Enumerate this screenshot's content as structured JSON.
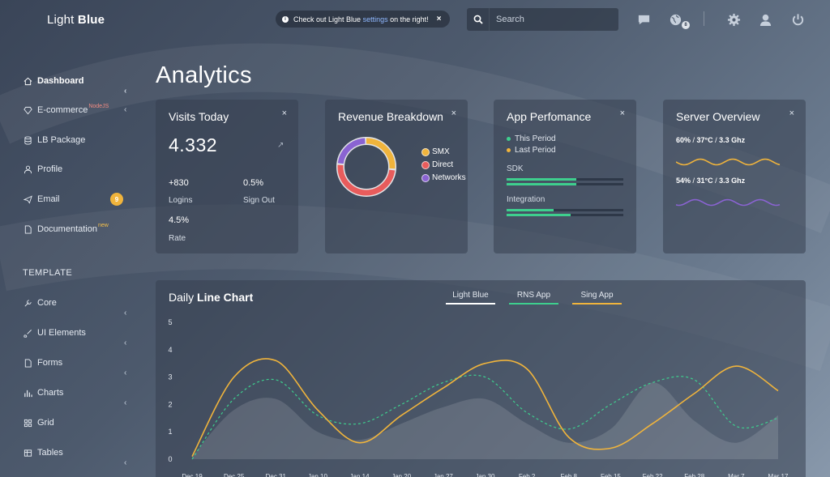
{
  "brand": {
    "light": "Light",
    "bold": "Blue"
  },
  "notice": {
    "prefix": "Check out Light Blue",
    "link": "settings",
    "suffix": "on the right!",
    "close": "×"
  },
  "search": {
    "placeholder": "Search"
  },
  "header": {
    "notifications_count": "8"
  },
  "sidebar": {
    "items": [
      {
        "label": "Dashboard",
        "icon": "home-icon",
        "active": true
      },
      {
        "label": "E-commerce",
        "icon": "diamond-icon",
        "sup": "NodeJS"
      },
      {
        "label": "LB Package",
        "icon": "database-icon"
      },
      {
        "label": "Profile",
        "icon": "user-icon"
      },
      {
        "label": "Email",
        "icon": "paper-plane-icon",
        "badge": "9"
      },
      {
        "label": "Documentation",
        "icon": "document-icon",
        "sup": "new"
      }
    ],
    "section_title": "TEMPLATE",
    "template_items": [
      {
        "label": "Core",
        "icon": "wrench-icon"
      },
      {
        "label": "UI Elements",
        "icon": "brush-icon"
      },
      {
        "label": "Forms",
        "icon": "document-icon"
      },
      {
        "label": "Charts",
        "icon": "chart-icon"
      },
      {
        "label": "Grid",
        "icon": "grid-icon"
      },
      {
        "label": "Tables",
        "icon": "table-icon"
      }
    ]
  },
  "page": {
    "title": "Analytics"
  },
  "visits": {
    "title": "Visits Today",
    "close": "×",
    "value": "4.332",
    "stats": [
      {
        "value": "+830",
        "label": "Logins"
      },
      {
        "value": "0.5%",
        "label": "Sign Out"
      },
      {
        "value": "4.5%",
        "label": "Rate"
      }
    ]
  },
  "revenue": {
    "title": "Revenue Breakdown",
    "close": "×",
    "legend": [
      {
        "label": "SMX",
        "color": "#f0b43c",
        "share": 0.27
      },
      {
        "label": "Direct",
        "color": "#e85c5c",
        "share": 0.5
      },
      {
        "label": "Networks",
        "color": "#8a63d2",
        "share": 0.23
      }
    ]
  },
  "performance": {
    "title": "App Perfomance",
    "close": "×",
    "legend": [
      {
        "label": "This Period",
        "color": "#3ecf8e"
      },
      {
        "label": "Last Period",
        "color": "#f0b43c"
      }
    ],
    "metrics": [
      {
        "label": "SDK",
        "this": 0.6,
        "last": 0.6
      },
      {
        "label": "Integration",
        "this": 0.4,
        "last": 0.55
      }
    ]
  },
  "server": {
    "title": "Server Overview",
    "close": "×",
    "rows": [
      {
        "pct": "60%",
        "temp": "37°C",
        "freq": "3.3 Ghz",
        "color": "#f0b43c"
      },
      {
        "pct": "54%",
        "temp": "31°C",
        "freq": "3.3 Ghz",
        "color": "#8a63d2"
      }
    ]
  },
  "line_chart": {
    "title_light": "Daily",
    "title_bold": "Line Chart",
    "tabs": [
      {
        "label": "Light Blue",
        "color": "#ffffff"
      },
      {
        "label": "RNS App",
        "color": "#3ecf8e"
      },
      {
        "label": "Sing App",
        "color": "#f0b43c"
      }
    ]
  },
  "chart_data": {
    "type": "line",
    "title": "Daily Line Chart",
    "x": [
      "Dec 19",
      "Dec 25",
      "Dec 31",
      "Jan 10",
      "Jan 14",
      "Jan 20",
      "Jan 27",
      "Jan 30",
      "Feb 2",
      "Feb 8",
      "Feb 15",
      "Feb 22",
      "Feb 28",
      "Mar 7",
      "Mar 17"
    ],
    "ylim": [
      0,
      5
    ],
    "yticks": [
      0,
      1,
      2,
      3,
      4,
      5
    ],
    "series": [
      {
        "name": "Light Blue",
        "style": "area",
        "color": "#ffffff",
        "values": [
          0.1,
          1.8,
          2.2,
          1.0,
          0.7,
          1.3,
          1.9,
          2.2,
          1.3,
          0.6,
          1.1,
          2.8,
          1.4,
          0.6,
          1.6
        ]
      },
      {
        "name": "RNS App",
        "style": "dashed",
        "color": "#3ecf8e",
        "values": [
          0.0,
          2.2,
          2.9,
          1.6,
          1.3,
          2.0,
          2.8,
          3.0,
          1.7,
          1.1,
          2.0,
          2.8,
          2.9,
          1.2,
          1.5
        ]
      },
      {
        "name": "Sing App",
        "style": "solid",
        "color": "#f0b43c",
        "values": [
          0.1,
          3.0,
          3.6,
          1.8,
          0.6,
          1.6,
          2.6,
          3.5,
          3.3,
          0.8,
          0.4,
          1.3,
          2.4,
          3.4,
          2.5
        ]
      }
    ]
  }
}
